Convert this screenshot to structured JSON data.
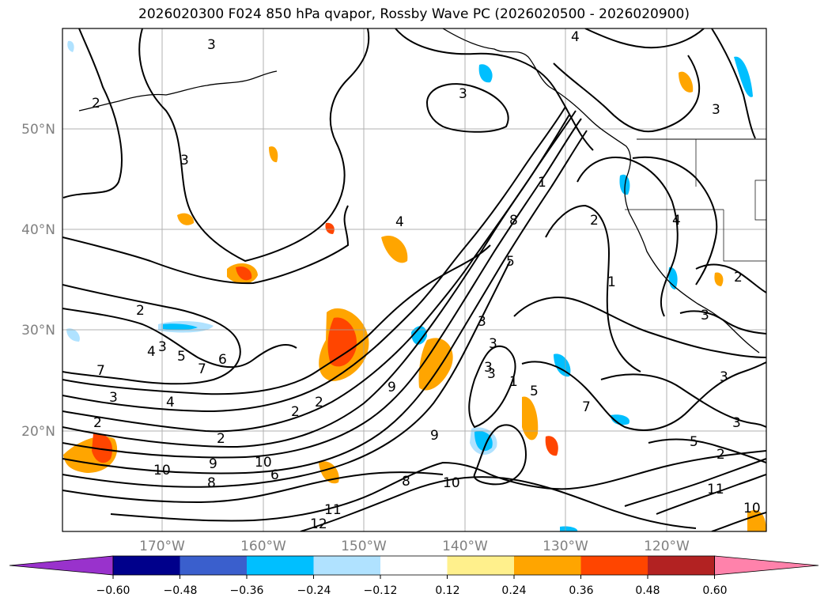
{
  "title": "2026020300 F024 850 hPa qvapor, Rossby Wave PC (2026020500 - 2026020900)",
  "lat_labels": [
    "50°N",
    "40°N",
    "30°N",
    "20°N"
  ],
  "lon_labels": [
    "170°W",
    "160°W",
    "150°W",
    "140°W",
    "130°W",
    "120°W"
  ],
  "colorbar": {
    "ticks": [
      "−0.60",
      "−0.48",
      "−0.36",
      "−0.24",
      "−0.12",
      "0.12",
      "0.24",
      "0.36",
      "0.48",
      "0.60"
    ],
    "colors": [
      "#9932cc",
      "#00008b",
      "#3a5fcd",
      "#00bfff",
      "#b0e2ff",
      "#ffffff",
      "#fff08c",
      "#ffa500",
      "#ff4500",
      "#b22222",
      "#ff82ab"
    ]
  },
  "contour_labels": [
    "3",
    "2",
    "3",
    "4",
    "3",
    "4",
    "2",
    "3",
    "7",
    "3",
    "2",
    "1",
    "2",
    "4",
    "2",
    "3",
    "3",
    "4",
    "5",
    "6",
    "7",
    "3",
    "4",
    "2",
    "9",
    "7",
    "8",
    "5",
    "3",
    "3",
    "5",
    "9",
    "6",
    "8",
    "10",
    "9",
    "10",
    "8",
    "12",
    "11",
    "10",
    "1",
    "2",
    "3",
    "3",
    "2",
    "5",
    "3",
    "2",
    "1",
    "11",
    "10"
  ],
  "colors": {
    "contour": "#000000",
    "grid": "#a0a0a0",
    "axis_label": "#808080"
  }
}
